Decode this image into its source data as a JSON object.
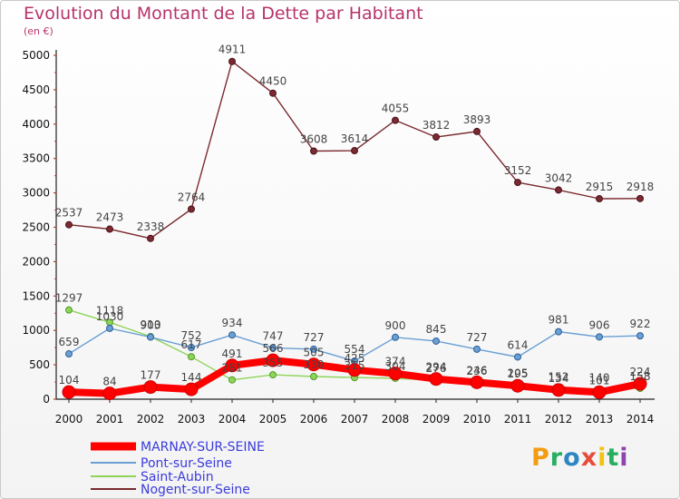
{
  "chart_data": {
    "type": "line",
    "title": "Evolution du Montant de la Dette par Habitant",
    "subtitle": "(en €)",
    "x": [
      2000,
      2001,
      2002,
      2003,
      2004,
      2005,
      2006,
      2007,
      2008,
      2009,
      2010,
      2011,
      2012,
      2013,
      2014
    ],
    "ylim": [
      0,
      5000
    ],
    "yticks": [
      0,
      500,
      1000,
      1500,
      2000,
      2500,
      3000,
      3500,
      4000,
      4500,
      5000
    ],
    "grid": false,
    "legend_position": "bottom-left",
    "series": [
      {
        "name": "MARNAY-SUR-SEINE",
        "color": "#ff0000",
        "values": [
          104,
          84,
          177,
          144,
          491,
          566,
          505,
          425,
          374,
          294,
          246,
          195,
          134,
          101,
          224
        ]
      },
      {
        "name": "Pont-sur-Seine",
        "color": "#6a9fd4",
        "values": [
          659,
          1030,
          903,
          752,
          934,
          747,
          727,
          554,
          900,
          845,
          727,
          614,
          981,
          906,
          922
        ]
      },
      {
        "name": "Saint-Aubin",
        "color": "#8fd45a",
        "values": [
          1297,
          1118,
          910,
          617,
          281,
          355,
          330,
          315,
          304,
          276,
          236,
          205,
          152,
          140,
          158
        ]
      },
      {
        "name": "Nogent-sur-Seine",
        "color": "#7a2a30",
        "values": [
          2537,
          2473,
          2338,
          2764,
          4911,
          4450,
          3608,
          3614,
          4055,
          3812,
          3893,
          3152,
          3042,
          2915,
          2918
        ]
      }
    ]
  },
  "branding": {
    "logo_text": "Proxiti",
    "logo_letters": [
      "P",
      "r",
      "o",
      "x",
      "i",
      "t",
      "i"
    ],
    "logo_colors": [
      "#f39c12",
      "#27ae60",
      "#2e86c1",
      "#e74c3c",
      "#f1c40f",
      "#27ae60",
      "#8e44ad"
    ]
  }
}
